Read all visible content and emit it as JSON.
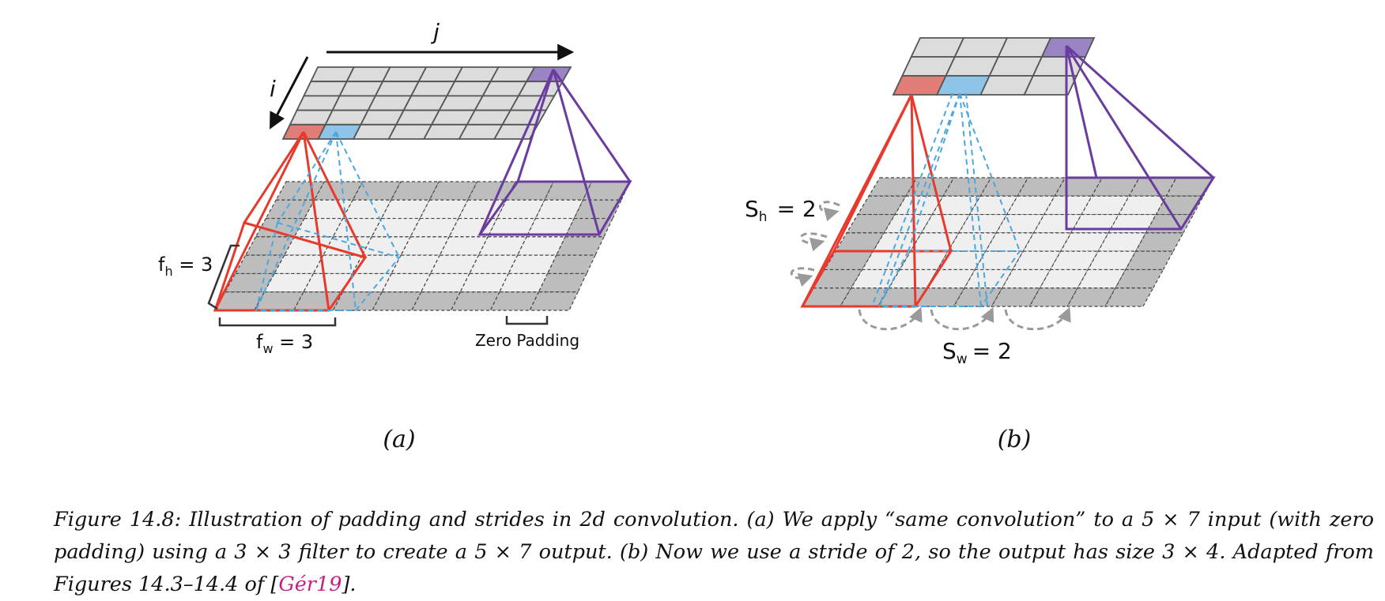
{
  "panel_a": {
    "label": "(a)",
    "axis_i": "i",
    "axis_j": "j",
    "fh_sym": "f",
    "fh_sub": "h",
    "fh_val": " = 3",
    "fw_sym": "f",
    "fw_sub": "w",
    "fw_val": " = 3",
    "zero_padding": "Zero Padding",
    "input_grid": {
      "rows": 7,
      "cols": 9,
      "padding": 1
    },
    "output_grid": {
      "rows": 5,
      "cols": 7
    }
  },
  "panel_b": {
    "label": "(b)",
    "sh_sym": "S",
    "sh_sub": "h",
    "sh_val": "= 2",
    "sw_sym": "S",
    "sw_sub": "w",
    "sw_val": "= 2",
    "input_grid": {
      "rows": 7,
      "cols": 9,
      "padding": 1
    },
    "output_grid": {
      "rows": 3,
      "cols": 4
    }
  },
  "colors": {
    "red": "#e8392d",
    "blue": "#4aa8df",
    "purple": "#6a3ca0",
    "red_cell": "#e07d76",
    "blue_cell": "#8ec4e8",
    "purple_cell": "#9b84c4",
    "padding_cell": "#bdbdbd",
    "inner_cell": "#efefef",
    "output_cell": "#dcdcdc",
    "arrow_gray": "#9a9a9a"
  },
  "caption": {
    "prefix": "Figure 14.8: Illustration of padding and strides in 2d convolution.  (a) We apply “same convolution” to a 5 × 7 input (with zero padding) using a 3 × 3 filter to create a 5 × 7 output.  (b) Now we use a stride of 2, so the output has size 3 × 4.  Adapted from Figures 14.3–14.4 of [",
    "citation": "Gér19",
    "suffix": "]."
  }
}
